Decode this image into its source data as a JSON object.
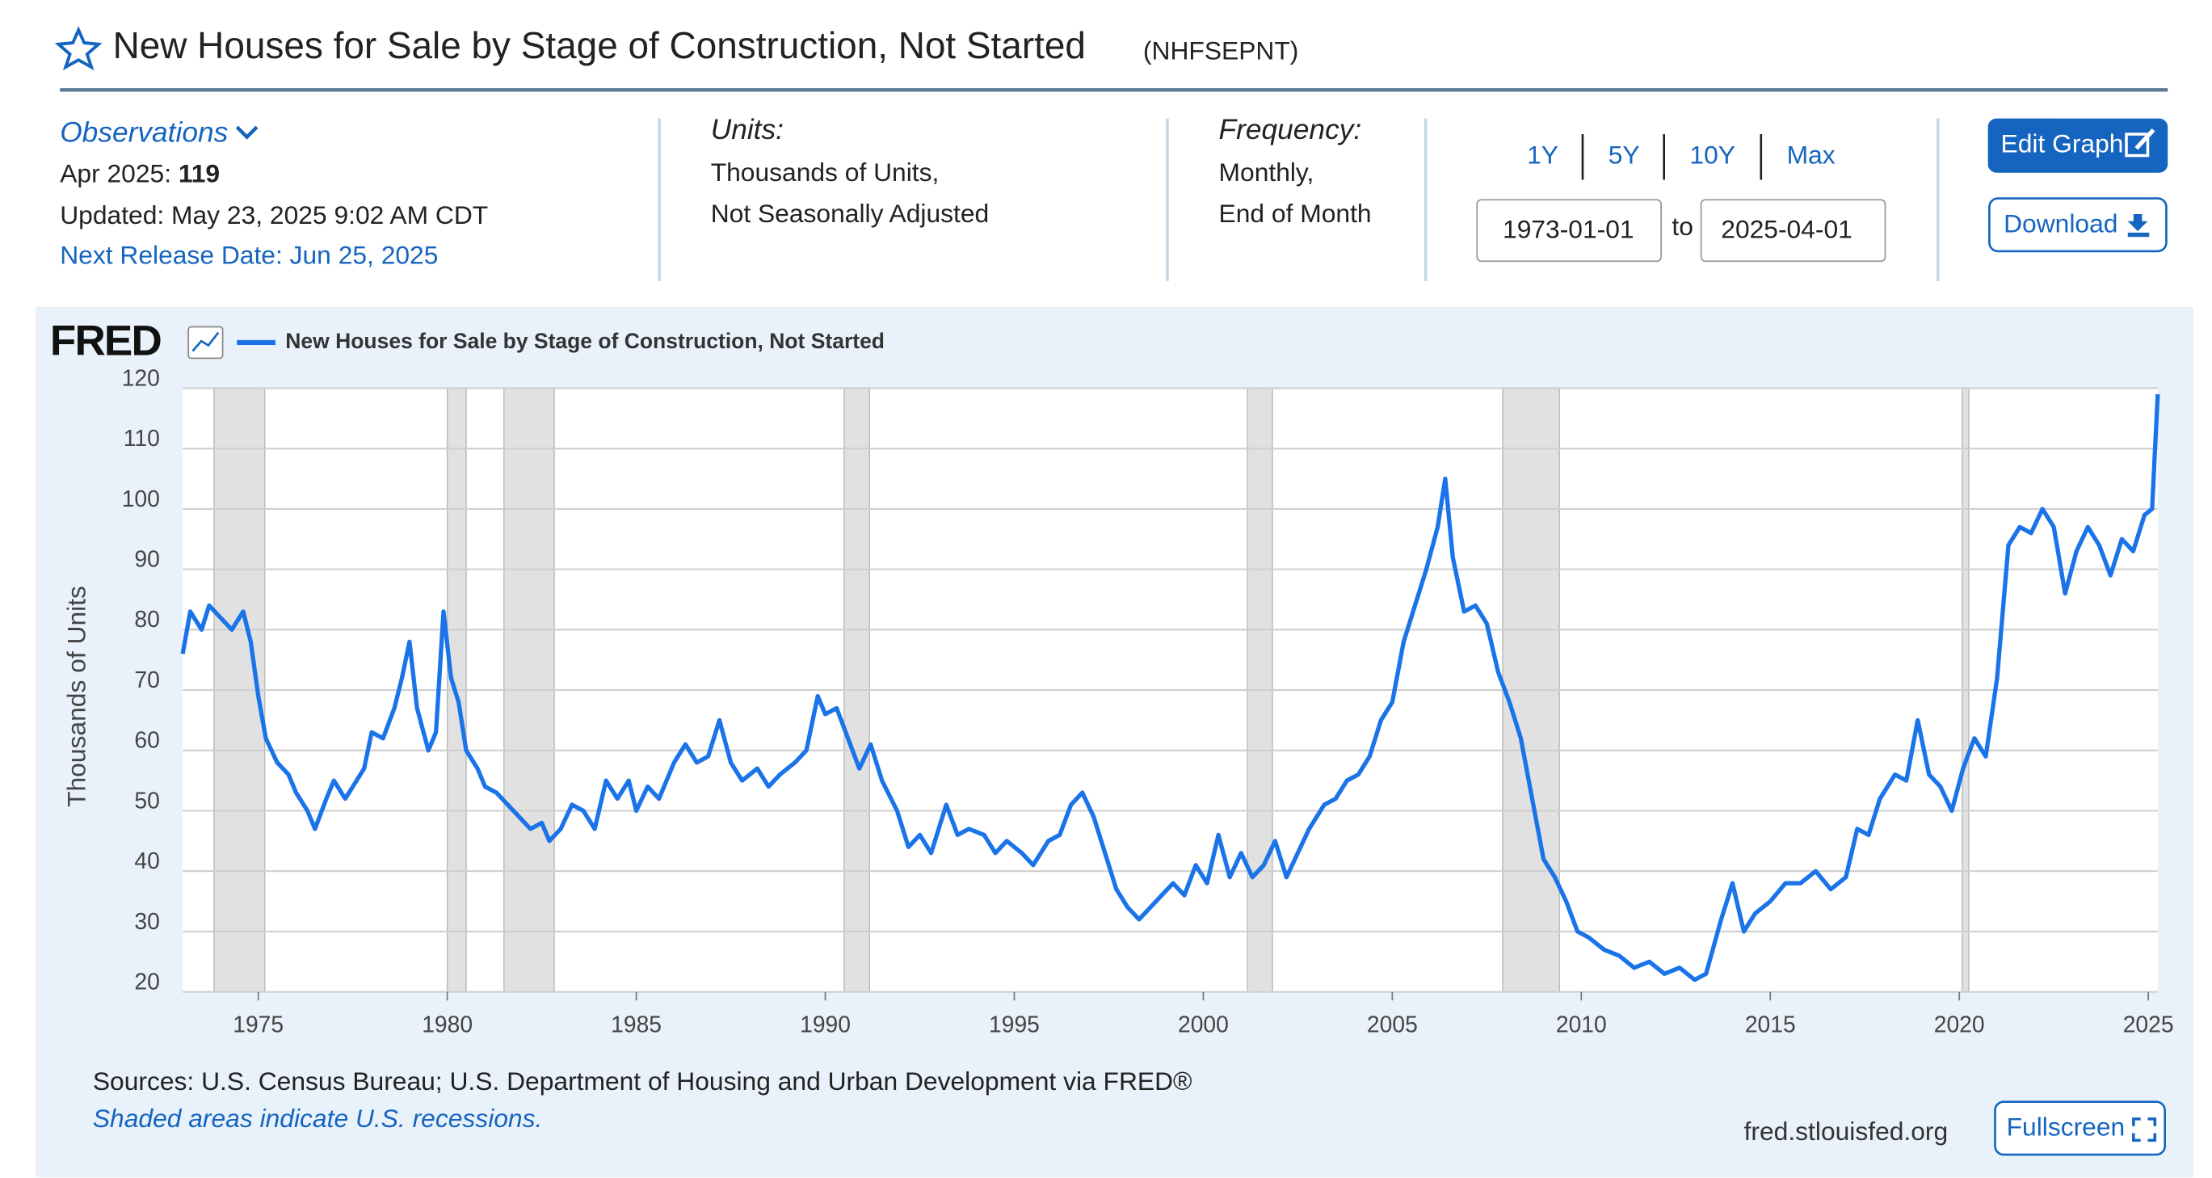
{
  "header": {
    "title": "New Houses for Sale by Stage of Construction, Not Started",
    "series_id": "(NHFSEPNT)"
  },
  "observations": {
    "label": "Observations",
    "date": "Apr 2025:",
    "value": "119",
    "updated": "Updated: May 23, 2025 9:02 AM CDT",
    "next_release": "Next Release Date: Jun 25, 2025"
  },
  "units": {
    "label": "Units:",
    "lines": [
      "Thousands of Units,",
      "Not Seasonally Adjusted"
    ]
  },
  "frequency": {
    "label": "Frequency:",
    "lines": [
      "Monthly,",
      "End of Month"
    ]
  },
  "range_buttons": [
    "1Y",
    "5Y",
    "10Y",
    "Max"
  ],
  "date_range": {
    "start": "1973-01-01",
    "to": "to",
    "end": "2025-04-01"
  },
  "buttons": {
    "edit": "Edit Graph",
    "download": "Download",
    "fullscreen": "Fullscreen"
  },
  "chart_data": {
    "type": "line",
    "logo": "FRED",
    "y_label": "Thousands of Units",
    "x": [
      1973.0,
      1973.2,
      1973.5,
      1973.7,
      1974.0,
      1974.3,
      1974.6,
      1974.8,
      1975.0,
      1975.2,
      1975.5,
      1975.8,
      1976.0,
      1976.3,
      1976.5,
      1976.8,
      1977.0,
      1977.3,
      1977.5,
      1977.8,
      1978.0,
      1978.3,
      1978.6,
      1978.8,
      1979.0,
      1979.2,
      1979.5,
      1979.7,
      1979.9,
      1980.1,
      1980.3,
      1980.5,
      1980.8,
      1981.0,
      1981.3,
      1981.6,
      1981.9,
      1982.2,
      1982.5,
      1982.7,
      1983.0,
      1983.3,
      1983.6,
      1983.9,
      1984.2,
      1984.5,
      1984.8,
      1985.0,
      1985.3,
      1985.6,
      1986.0,
      1986.3,
      1986.6,
      1986.9,
      1987.2,
      1987.5,
      1987.8,
      1988.2,
      1988.5,
      1988.8,
      1989.2,
      1989.5,
      1989.8,
      1990.0,
      1990.3,
      1990.6,
      1990.9,
      1991.2,
      1991.5,
      1991.9,
      1992.2,
      1992.5,
      1992.8,
      1993.2,
      1993.5,
      1993.8,
      1994.2,
      1994.5,
      1994.8,
      1995.2,
      1995.5,
      1995.9,
      1996.2,
      1996.5,
      1996.8,
      1997.1,
      1997.4,
      1997.7,
      1998.0,
      1998.3,
      1998.6,
      1998.9,
      1999.2,
      1999.5,
      1999.8,
      2000.1,
      2000.4,
      2000.7,
      2001.0,
      2001.3,
      2001.6,
      2001.9,
      2002.2,
      2002.5,
      2002.8,
      2003.2,
      2003.5,
      2003.8,
      2004.1,
      2004.4,
      2004.7,
      2005.0,
      2005.3,
      2005.6,
      2005.9,
      2006.2,
      2006.4,
      2006.6,
      2006.9,
      2007.2,
      2007.5,
      2007.8,
      2008.1,
      2008.4,
      2008.7,
      2009.0,
      2009.3,
      2009.6,
      2009.9,
      2010.2,
      2010.6,
      2011.0,
      2011.4,
      2011.8,
      2012.2,
      2012.6,
      2013.0,
      2013.3,
      2013.7,
      2014.0,
      2014.3,
      2014.6,
      2015.0,
      2015.4,
      2015.8,
      2016.2,
      2016.6,
      2017.0,
      2017.3,
      2017.6,
      2017.9,
      2018.3,
      2018.6,
      2018.9,
      2019.2,
      2019.5,
      2019.8,
      2020.1,
      2020.4,
      2020.7,
      2021.0,
      2021.3,
      2021.6,
      2021.9,
      2022.2,
      2022.5,
      2022.8,
      2023.1,
      2023.4,
      2023.7,
      2024.0,
      2024.3,
      2024.6,
      2024.9,
      2025.1,
      2025.25
    ],
    "series": [
      {
        "name": "New Houses for Sale by Stage of Construction, Not Started",
        "color": "#1a73e8",
        "values": [
          76,
          83,
          80,
          84,
          82,
          80,
          83,
          78,
          69,
          62,
          58,
          56,
          53,
          50,
          47,
          52,
          55,
          52,
          54,
          57,
          63,
          62,
          67,
          72,
          78,
          67,
          60,
          63,
          83,
          72,
          68,
          60,
          57,
          54,
          53,
          51,
          49,
          47,
          48,
          45,
          47,
          51,
          50,
          47,
          55,
          52,
          55,
          50,
          54,
          52,
          58,
          61,
          58,
          59,
          65,
          58,
          55,
          57,
          54,
          56,
          58,
          60,
          69,
          66,
          67,
          62,
          57,
          61,
          55,
          50,
          44,
          46,
          43,
          51,
          46,
          47,
          46,
          43,
          45,
          43,
          41,
          45,
          46,
          51,
          53,
          49,
          43,
          37,
          34,
          32,
          34,
          36,
          38,
          36,
          41,
          38,
          46,
          39,
          43,
          39,
          41,
          45,
          39,
          43,
          47,
          51,
          52,
          55,
          56,
          59,
          65,
          68,
          78,
          84,
          90,
          97,
          105,
          92,
          83,
          84,
          81,
          73,
          68,
          62,
          52,
          42,
          39,
          35,
          30,
          29,
          27,
          26,
          24,
          25,
          23,
          24,
          22,
          23,
          32,
          38,
          30,
          33,
          35,
          38,
          38,
          40,
          37,
          39,
          47,
          46,
          52,
          56,
          55,
          65,
          56,
          54,
          50,
          57,
          62,
          59,
          72,
          94,
          97,
          96,
          100,
          97,
          86,
          93,
          97,
          94,
          89,
          95,
          93,
          99,
          100,
          119
        ]
      }
    ],
    "recessions": [
      [
        1973.83,
        1975.17
      ],
      [
        1980.0,
        1980.5
      ],
      [
        1981.5,
        1982.83
      ],
      [
        1990.5,
        1991.17
      ],
      [
        2001.17,
        2001.83
      ],
      [
        2007.92,
        2009.42
      ],
      [
        2020.08,
        2020.25
      ]
    ],
    "xlim": [
      1973.0,
      2025.25
    ],
    "xticks": [
      1975,
      1980,
      1985,
      1990,
      1995,
      2000,
      2005,
      2010,
      2015,
      2020,
      2025
    ],
    "ylim": [
      20,
      120
    ],
    "yticks": [
      20,
      30,
      40,
      50,
      60,
      70,
      80,
      90,
      100,
      110,
      120
    ],
    "grid": true,
    "recession_color": "#e1e1e1"
  },
  "footer": {
    "sources": "Sources: U.S. Census Bureau; U.S. Department of Housing and Urban Development via FRED®",
    "note": "Shaded areas indicate U.S. recessions.",
    "site": "fred.stlouisfed.org"
  }
}
